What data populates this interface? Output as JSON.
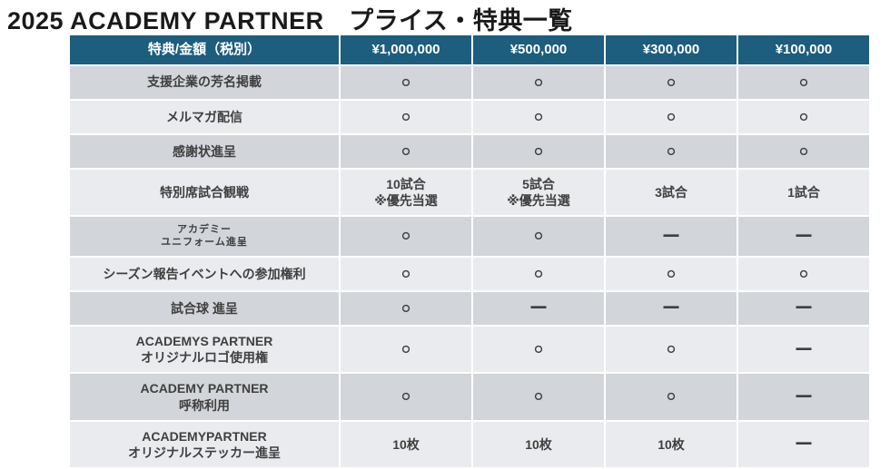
{
  "title": "2025 ACADEMY PARTNER　プライス・特典一覧",
  "table": {
    "header": [
      "特典/金額（税別）",
      "¥1,000,000",
      "¥500,000",
      "¥300,000",
      "¥100,000"
    ],
    "rows": [
      {
        "label": "支援企業の芳名掲載",
        "small": false,
        "cells": [
          "○",
          "○",
          "○",
          "○"
        ]
      },
      {
        "label": "メルマガ配信",
        "small": false,
        "cells": [
          "○",
          "○",
          "○",
          "○"
        ]
      },
      {
        "label": "感謝状進呈",
        "small": false,
        "cells": [
          "○",
          "○",
          "○",
          "○"
        ]
      },
      {
        "label": "特別席試合観戦",
        "small": false,
        "cells": [
          "10試合\n※優先当選",
          "5試合\n※優先当選",
          "3試合",
          "1試合"
        ]
      },
      {
        "label": "アカデミー\nユニフォーム進呈",
        "small": true,
        "cells": [
          "○",
          "○",
          "―",
          "―"
        ]
      },
      {
        "label": "シーズン報告イベントへの参加権利",
        "small": false,
        "cells": [
          "○",
          "○",
          "○",
          "○"
        ]
      },
      {
        "label": "試合球 進呈",
        "small": false,
        "cells": [
          "○",
          "―",
          "―",
          "―"
        ]
      },
      {
        "label": "ACADEMYS PARTNER\nオリジナルロゴ使用権",
        "small": false,
        "cells": [
          "○",
          "○",
          "○",
          "―"
        ]
      },
      {
        "label": "ACADEMY PARTNER\n呼称利用",
        "small": false,
        "cells": [
          "○",
          "○",
          "○",
          "―"
        ]
      },
      {
        "label": "ACADEMYPARTNER\nオリジナルステッカー進呈",
        "small": false,
        "cells": [
          "10枚",
          "10枚",
          "10枚",
          "―"
        ]
      }
    ],
    "marks": {
      "available": "○",
      "not_available": "―"
    }
  },
  "colors": {
    "header_bg": "#1d5d7d",
    "header_text": "#ffffff",
    "band_dark": "#d2d5da",
    "band_light": "#e9ebee",
    "body_text": "#3f3f3f",
    "title_color": "#1a1a1a"
  }
}
